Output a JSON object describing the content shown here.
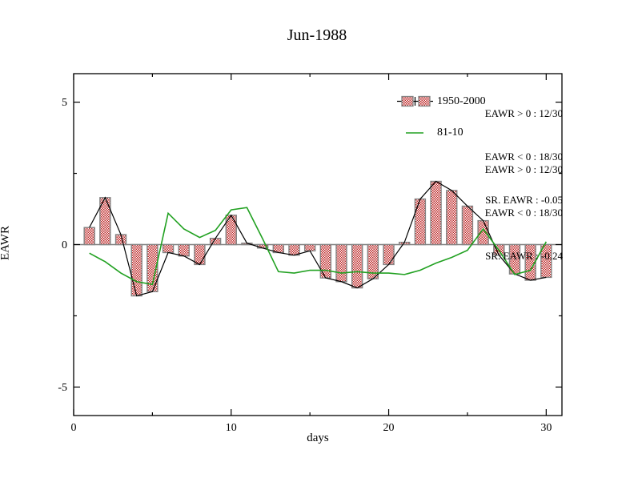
{
  "title": "Jun-1988",
  "chart_data": {
    "type": "bar",
    "title": "Jun-1988",
    "xlabel": "days",
    "ylabel": "EAWR",
    "xlim": [
      0,
      31
    ],
    "ylim": [
      -6,
      6
    ],
    "x_major_ticks": [
      0,
      10,
      20,
      30
    ],
    "x_minor_ticks": [
      5,
      15,
      25
    ],
    "y_major_ticks": [
      -5,
      0,
      5
    ],
    "y_minor_ticks": [
      -2.5,
      2.5
    ],
    "grid": "off",
    "legend_position": "top-right",
    "x": [
      1,
      2,
      3,
      4,
      5,
      6,
      7,
      8,
      9,
      10,
      11,
      12,
      13,
      14,
      15,
      16,
      17,
      18,
      19,
      20,
      21,
      22,
      23,
      24,
      25,
      26,
      27,
      28,
      29,
      30
    ],
    "series": [
      {
        "name": "1950-2000",
        "type": "bar",
        "values": [
          0.6,
          1.65,
          0.35,
          -1.8,
          -1.65,
          -0.28,
          -0.4,
          -0.7,
          0.22,
          1.03,
          0.05,
          -0.12,
          -0.28,
          -0.37,
          -0.22,
          -1.17,
          -1.3,
          -1.52,
          -1.2,
          -0.7,
          0.08,
          1.6,
          2.22,
          1.9,
          1.35,
          0.84,
          -0.37,
          -1.03,
          -1.25,
          -1.15
        ]
      },
      {
        "name": "81-10",
        "type": "line",
        "values": [
          -0.3,
          -0.6,
          -1.0,
          -1.3,
          -1.4,
          1.1,
          0.55,
          0.25,
          0.5,
          1.22,
          1.3,
          0.2,
          -0.95,
          -1.0,
          -0.9,
          -0.9,
          -1.0,
          -0.95,
          -1.0,
          -1.0,
          -1.05,
          -0.9,
          -0.65,
          -0.45,
          -0.2,
          0.55,
          -0.2,
          -1.05,
          -0.9,
          0.1
        ]
      }
    ],
    "stats_blocks": [
      {
        "lines": [
          "EAWR > 0 : 12/30",
          "EAWR < 0 : 18/30",
          "SR. EAWR : -0.05"
        ]
      },
      {
        "lines": [
          "EAWR > 0 : 12/30",
          "EAWR < 0 : 18/30",
          "SR. EAWR : -0.24"
        ]
      }
    ]
  },
  "colors": {
    "bar_fill_red": "#bb2222",
    "bar_border": "#848484",
    "series_line_black": "#000000",
    "line_green": "#21a121",
    "zero_line": "#7f7f7f",
    "frame": "#000000",
    "background": "#ffffff",
    "text": "#000000"
  }
}
